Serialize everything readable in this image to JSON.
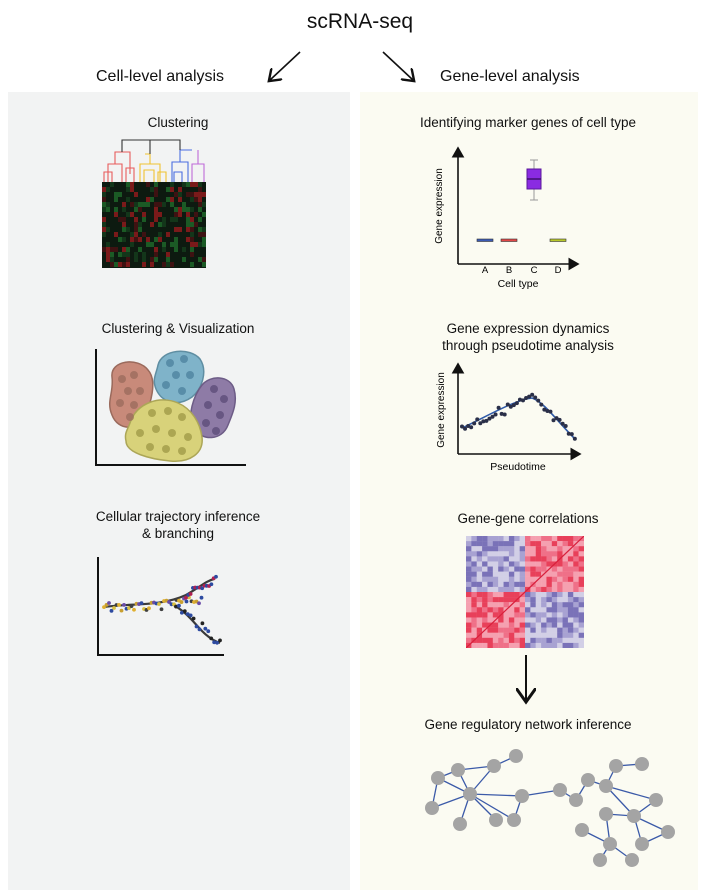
{
  "header": {
    "title": "scRNA-seq",
    "left_heading": "Cell-level analysis",
    "right_heading": "Gene-level analysis"
  },
  "left": {
    "clustering": {
      "label": "Clustering",
      "dendrogram_colors": [
        "#e85b5b",
        "#f0c330",
        "#4c6ee0",
        "#c06ad8"
      ]
    },
    "visualization": {
      "label": "Clustering & Visualization",
      "cluster_colors": [
        "#c88a7a",
        "#7fb3c9",
        "#8e7ba6",
        "#d8d27a"
      ]
    },
    "trajectory": {
      "label_line1": "Cellular trajectory inference",
      "label_line2": "& branching"
    }
  },
  "right": {
    "markers": {
      "label": "Identifying marker genes of cell type",
      "ylabel": "Gene expression",
      "xlabel": "Cell type",
      "categories": [
        "A",
        "B",
        "C",
        "D"
      ],
      "colors": [
        "#3b5bb5",
        "#e24848",
        "#8a2be2",
        "#b8c82a"
      ]
    },
    "pseudotime": {
      "label_line1": "Gene expression dynamics",
      "label_line2": "through pseudotime analysis",
      "ylabel": "Gene expression",
      "xlabel": "Pseudotime"
    },
    "correlations": {
      "label": "Gene-gene correlations"
    },
    "network": {
      "label": "Gene regulatory network inference"
    }
  }
}
